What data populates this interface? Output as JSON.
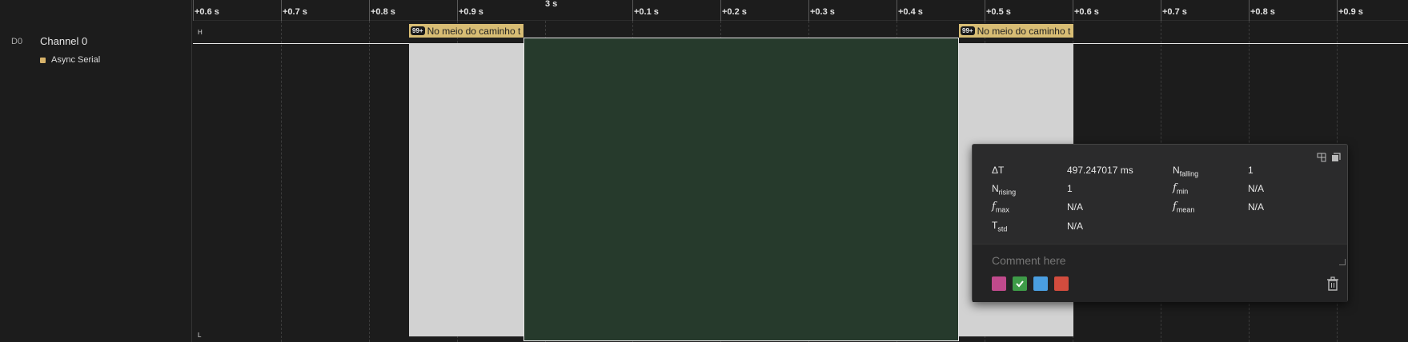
{
  "channel": {
    "id": "D0",
    "name": "Channel 0",
    "analyzer": "Async Serial"
  },
  "colors": {
    "analyzer_dot": "#d7b36a",
    "label_chip": "#d8bd74",
    "measure_fill": "#263a2c"
  },
  "ruler": {
    "center_label": "3 s",
    "ticks": [
      "+0.6 s",
      "+0.7 s",
      "+0.8 s",
      "+0.9 s",
      "+0.1 s",
      "+0.2 s",
      "+0.3 s",
      "+0.4 s",
      "+0.5 s",
      "+0.6 s",
      "+0.7 s",
      "+0.8 s",
      "+0.9 s"
    ]
  },
  "signal": {
    "high_marker": "H",
    "low_marker": "L"
  },
  "frames": [
    {
      "badge": "99+",
      "text": "No meio do caminho t"
    },
    {
      "badge": "99+",
      "text": "No meio do caminho t"
    }
  ],
  "measurement": {
    "dt_label": "ΔT",
    "dt_value": "497.247017 ms",
    "nfalling_label": "N",
    "nfalling_sub": "falling",
    "nfalling_value": "1",
    "nrising_label": "N",
    "nrising_sub": "rising",
    "nrising_value": "1",
    "fmin_label": "f",
    "fmin_sub": "min",
    "fmin_value": "N/A",
    "fmax_label": "f",
    "fmax_sub": "max",
    "fmax_value": "N/A",
    "fmean_label": "f",
    "fmean_sub": "mean",
    "fmean_value": "N/A",
    "tstd_label": "T",
    "tstd_sub": "std",
    "tstd_value": "N/A",
    "comment_placeholder": "Comment here",
    "swatch_colors": [
      "#c04a8c",
      "#3e9b48",
      "#4a9ee0",
      "#d24c3e"
    ]
  }
}
